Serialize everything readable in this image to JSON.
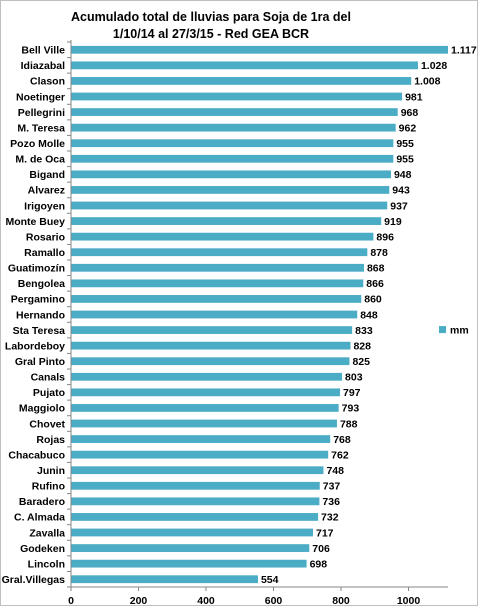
{
  "chart_data": {
    "type": "bar",
    "orientation": "horizontal",
    "title_line1": "Acumulado total de lluvias para Soja de 1ra del",
    "title_line2": "1/10/14 al 27/3/15 - Red GEA BCR",
    "categories": [
      "Bell Ville",
      "Idiazabal",
      "Clason",
      "Noetinger",
      "Pellegrini",
      "M. Teresa",
      "Pozo Molle",
      "M. de Oca",
      "Bigand",
      "Alvarez",
      "Irigoyen",
      "Monte Buey",
      "Rosario",
      "Ramallo",
      "Guatimozín",
      "Bengolea",
      "Pergamino",
      "Hernando",
      "Sta Teresa",
      "Labordeboy",
      "Gral Pinto",
      "Canals",
      "Pujato",
      "Maggiolo",
      "Chovet",
      "Rojas",
      "Chacabuco",
      "Junin",
      "Rufino",
      "Baradero",
      "C. Almada",
      "Zavalla",
      "Godeken",
      "Lincoln",
      "Gral.Villegas"
    ],
    "values": [
      1117,
      1028,
      1008,
      981,
      968,
      962,
      955,
      955,
      948,
      943,
      937,
      919,
      896,
      878,
      868,
      866,
      860,
      848,
      833,
      828,
      825,
      803,
      797,
      793,
      788,
      768,
      762,
      748,
      737,
      736,
      732,
      717,
      706,
      698,
      554
    ],
    "value_labels": [
      "1.117",
      "1.028",
      "1.008",
      "981",
      "968",
      "962",
      "955",
      "955",
      "948",
      "943",
      "937",
      "919",
      "896",
      "878",
      "868",
      "866",
      "860",
      "848",
      "833",
      "828",
      "825",
      "803",
      "797",
      "793",
      "788",
      "768",
      "762",
      "748",
      "737",
      "736",
      "732",
      "717",
      "706",
      "698",
      "554"
    ],
    "xticks": [
      "0",
      "200",
      "400",
      "600",
      "800",
      "1000"
    ],
    "xlim": [
      0,
      1117
    ],
    "series": [
      {
        "name": "mm",
        "color": "#4bacc6"
      }
    ],
    "legend_position": "right",
    "grid": false
  }
}
